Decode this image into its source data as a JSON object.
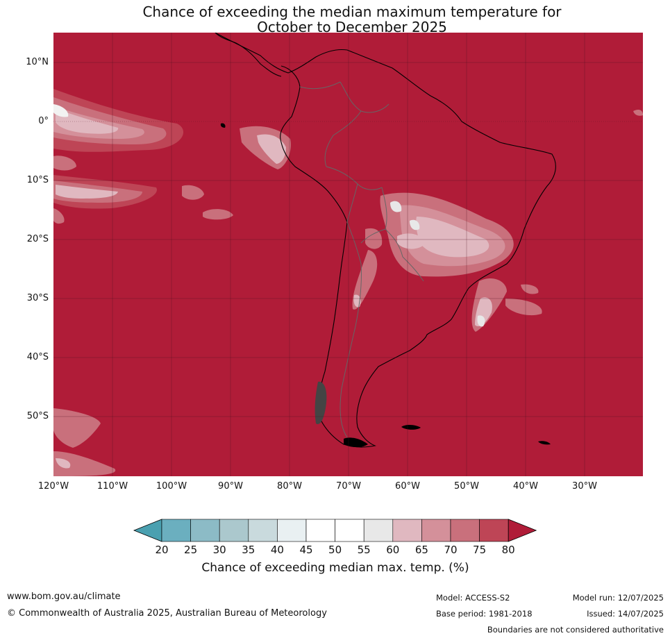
{
  "title_line1": "Chance of exceeding the median maximum temperature for",
  "title_line2": "October to December 2025",
  "lat_labels": [
    "10°N",
    "0°",
    "10°S",
    "20°S",
    "30°S",
    "40°S",
    "50°S"
  ],
  "lon_labels": [
    "120°W",
    "110°W",
    "100°W",
    "90°W",
    "80°W",
    "70°W",
    "60°W",
    "50°W",
    "40°W",
    "30°W"
  ],
  "colorbar": {
    "ticks": [
      "20",
      "25",
      "30",
      "35",
      "40",
      "45",
      "50",
      "55",
      "60",
      "65",
      "70",
      "75",
      "80"
    ],
    "colors": [
      "#4aa0b0",
      "#6bafbf",
      "#8cbbc6",
      "#abc8cd",
      "#c9dadd",
      "#e9f0f2",
      "#ffffff",
      "#ffffff",
      "#e8e8e8",
      "#e0b8c0",
      "#d4909a",
      "#c9707c",
      "#be4556",
      "#b01c38"
    ],
    "label": "Chance of exceeding median max. temp. (%)"
  },
  "background_color": "#b01c38",
  "footer": {
    "url": "www.bom.gov.au/climate",
    "copyright": "© Commonwealth of Australia 2025, Australian Bureau of Meteorology",
    "model": "Model: ACCESS-S2",
    "base_period": "Base period: 1981-2018",
    "model_run": "Model run: 12/07/2025",
    "issued": "Issued: 14/07/2025",
    "disclaimer": "Boundaries are not considered authoritative"
  }
}
